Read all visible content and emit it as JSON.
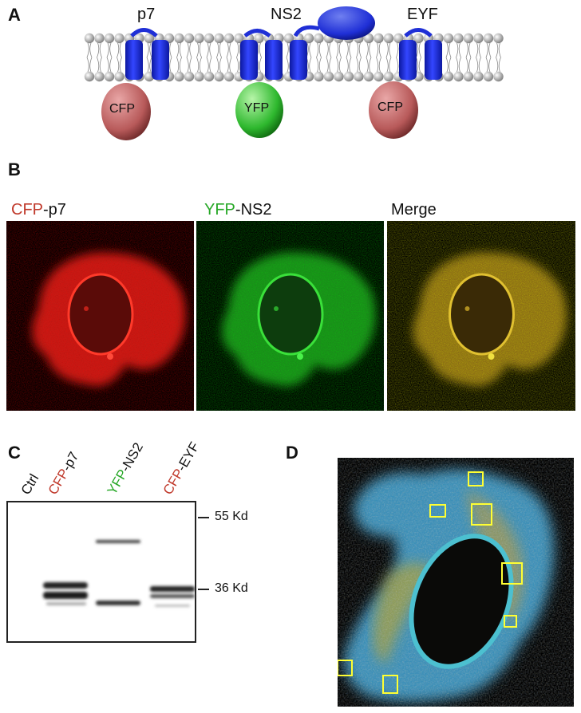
{
  "panels": {
    "a": "A",
    "b": "B",
    "c": "C",
    "d": "D"
  },
  "panel_a": {
    "proteins": [
      "p7",
      "NS2",
      "EYF"
    ],
    "tags": [
      "CFP",
      "YFP",
      "CFP"
    ],
    "colors": {
      "cfp": "#b85a5a",
      "yfp": "#2eb82e",
      "membrane_protein": "#1f2fd6",
      "lipid_head": "#9a9a9a"
    }
  },
  "panel_b": {
    "labels": [
      {
        "tag": "CFP",
        "rest": "-p7",
        "tag_color": "#c0392b"
      },
      {
        "tag": "YFP",
        "rest": "-NS2",
        "tag_color": "#27a827"
      },
      {
        "tag": "",
        "rest": "Merge",
        "tag_color": "#111111"
      }
    ]
  },
  "panel_c": {
    "lanes": [
      {
        "tag": "",
        "rest": "Ctrl",
        "tag_color": "#111111"
      },
      {
        "tag": "CFP",
        "rest": "-p7",
        "tag_color": "#c0392b"
      },
      {
        "tag": "YFP",
        "rest": "-NS2",
        "tag_color": "#27a827"
      },
      {
        "tag": "CFP",
        "rest": "-EYF",
        "tag_color": "#c0392b"
      }
    ],
    "markers": [
      "55 Kd",
      "36 Kd"
    ]
  }
}
